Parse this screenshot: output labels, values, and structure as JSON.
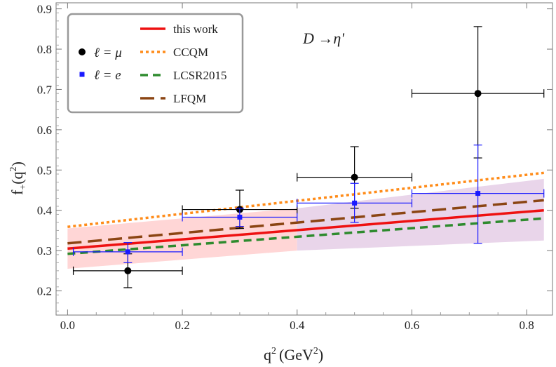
{
  "chart_data": {
    "type": "scatter",
    "xlabel": "q",
    "xlabel_sup": "2",
    "xlabel_unit": "(GeV",
    "xlabel_unit_sup": "2",
    "xlabel_close": ")",
    "ylabel": "f",
    "ylabel_sub": "+",
    "ylabel_arg": "(q",
    "ylabel_arg_sup": "2",
    "ylabel_close": ")",
    "annotation": "D →η'",
    "xlim": [
      -0.02,
      0.845
    ],
    "ylim": [
      0.14,
      0.915
    ],
    "xticks": [
      "0.0",
      "0.2",
      "0.4",
      "0.6",
      "0.8"
    ],
    "xtick_values": [
      0.0,
      0.2,
      0.4,
      0.6,
      0.8
    ],
    "yticks": [
      "0.2",
      "0.3",
      "0.4",
      "0.5",
      "0.6",
      "0.7",
      "0.8",
      "0.9"
    ],
    "ytick_values": [
      0.2,
      0.3,
      0.4,
      0.5,
      0.6,
      0.7,
      0.8,
      0.9
    ],
    "grid": false,
    "legend_position": "top-left",
    "bands": [
      {
        "color": "#ffd6d6",
        "x": [
          0.0,
          0.4
        ],
        "lower": [
          0.255,
          0.3
        ],
        "upper": [
          0.355,
          0.405
        ]
      },
      {
        "color": "#e9d5ea",
        "x": [
          0.4,
          0.83
        ],
        "lower": [
          0.3,
          0.325
        ],
        "upper": [
          0.405,
          0.478
        ]
      }
    ],
    "lines": [
      {
        "name": "this work",
        "color": "#ee1111",
        "dash": "",
        "width": 3.5,
        "x": [
          0.0,
          0.83
        ],
        "y": [
          0.305,
          0.4
        ]
      },
      {
        "name": "CCQM",
        "color": "#ff8c1a",
        "dash": "4,4",
        "width": 3.5,
        "x": [
          0.0,
          0.83
        ],
        "y": [
          0.359,
          0.493
        ]
      },
      {
        "name": "LCSR2015",
        "color": "#2e8b2e",
        "dash": "11,7",
        "width": 3.5,
        "x": [
          0.0,
          0.83
        ],
        "y": [
          0.292,
          0.38
        ]
      },
      {
        "name": "LFQM",
        "color": "#8b4513",
        "dash": "20,9",
        "width": 3.5,
        "x": [
          0.0,
          0.83
        ],
        "y": [
          0.318,
          0.425
        ]
      }
    ],
    "series": [
      {
        "name": "ℓ = μ",
        "color": "#000000",
        "marker": "circle",
        "points": [
          {
            "x": 0.105,
            "y": 0.25,
            "xlo": 0.01,
            "xhi": 0.2,
            "ylo": 0.208,
            "yhi": 0.292
          },
          {
            "x": 0.3,
            "y": 0.402,
            "xlo": 0.2,
            "xhi": 0.4,
            "ylo": 0.355,
            "yhi": 0.45
          },
          {
            "x": 0.5,
            "y": 0.482,
            "xlo": 0.4,
            "xhi": 0.6,
            "ylo": 0.405,
            "yhi": 0.558
          },
          {
            "x": 0.715,
            "y": 0.69,
            "xlo": 0.6,
            "xhi": 0.83,
            "ylo": 0.53,
            "yhi": 0.856
          }
        ]
      },
      {
        "name": "ℓ = e",
        "color": "#1a1aff",
        "marker": "square",
        "points": [
          {
            "x": 0.105,
            "y": 0.297,
            "xlo": 0.01,
            "xhi": 0.2,
            "ylo": 0.27,
            "yhi": 0.32
          },
          {
            "x": 0.3,
            "y": 0.383,
            "xlo": 0.2,
            "xhi": 0.4,
            "ylo": 0.36,
            "yhi": 0.405
          },
          {
            "x": 0.5,
            "y": 0.418,
            "xlo": 0.4,
            "xhi": 0.6,
            "ylo": 0.37,
            "yhi": 0.467
          },
          {
            "x": 0.715,
            "y": 0.442,
            "xlo": 0.6,
            "xhi": 0.83,
            "ylo": 0.318,
            "yhi": 0.562
          }
        ]
      }
    ]
  }
}
